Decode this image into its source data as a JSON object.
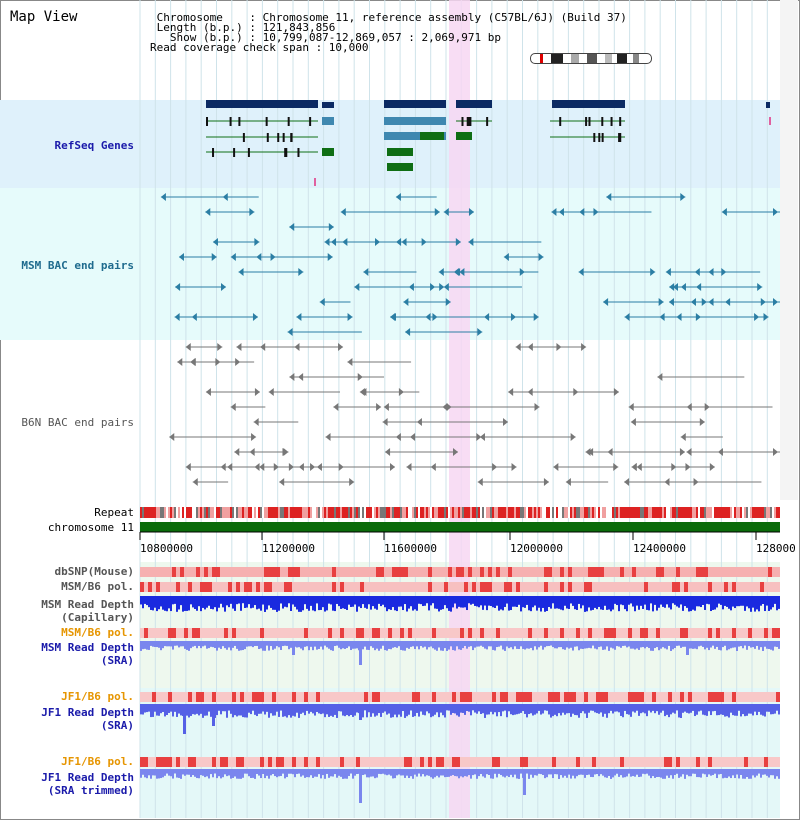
{
  "header": {
    "title": "Map View",
    "info_lines": [
      " Chromosome    : Chromosome 11, reference assembly (C57BL/6J) (Build 37)",
      " Length (b.p.) : 121,843,856",
      "   Show (b.p.) : 10,799,087-12,869,057 : 2,069,971 bp",
      "Read coverage check span : 10,000"
    ]
  },
  "tracks": {
    "refseq": "RefSeq Genes",
    "msm_bac": "MSM BAC end pairs",
    "b6n_bac": "B6N BAC end pairs",
    "repeat": "Repeat",
    "chromosome": "chromosome 11"
  },
  "axis": {
    "ticks": [
      "10800000",
      "11200000",
      "11600000",
      "12000000",
      "12400000",
      "128000"
    ]
  },
  "lower_tracks": [
    {
      "lines": [
        "dbSNP(Mouse)"
      ],
      "color": "#555555"
    },
    {
      "lines": [
        "MSM/B6 pol."
      ],
      "color": "#555555"
    },
    {
      "lines": [
        "MSM Read Depth",
        "(Capillary)"
      ],
      "color": "#555555"
    },
    {
      "lines": [
        "MSM/B6 pol."
      ],
      "color": "#e69500"
    },
    {
      "lines": [
        "MSM Read Depth",
        "(SRA)"
      ],
      "color": "#1a1aaa"
    },
    {
      "lines": [
        "JF1/B6 pol."
      ],
      "color": "#e69500"
    },
    {
      "lines": [
        "JF1 Read Depth",
        "(SRA)"
      ],
      "color": "#1a1aaa"
    },
    {
      "lines": [
        "JF1/B6 pol."
      ],
      "color": "#e69500"
    },
    {
      "lines": [
        "JF1 Read Depth",
        "(SRA trimmed)"
      ],
      "color": "#1a1aaa"
    }
  ],
  "colors": {
    "refseq_bg": "#dff1fb",
    "msm_bg": "#e6fbfb",
    "highlight": "#f7d7f2",
    "gene_dark": "#0b2a63",
    "gene_mid": "#3f88b0",
    "gene_green": "#0f6e14",
    "msm_bac": "#2b7ea4",
    "b6n_bac": "#777777",
    "repeat_red": "#dd2222",
    "chromosome_green": "#0a6b0a"
  }
}
